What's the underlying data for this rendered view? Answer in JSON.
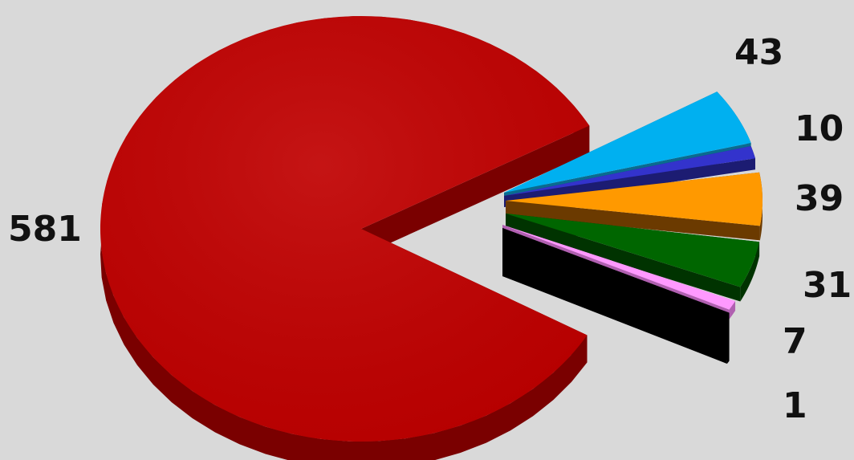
{
  "chart_data": {
    "type": "pie",
    "style": "3d-exploded",
    "title": "",
    "legend": "none",
    "slices": [
      {
        "value": 581,
        "label": "581",
        "color": "#c00000",
        "side_color": "#7a0000"
      },
      {
        "value": 43,
        "label": "43",
        "color": "#00b0f0",
        "side_color": "#0a6b8f"
      },
      {
        "value": 10,
        "label": "10",
        "color": "#3333cc",
        "side_color": "#1c1c72"
      },
      {
        "value": 39,
        "label": "39",
        "color": "#ff9900",
        "side_color": "#6b3a00"
      },
      {
        "value": 31,
        "label": "31",
        "color": "#006600",
        "side_color": "#003300"
      },
      {
        "value": 7,
        "label": "7",
        "color": "#ff99ff",
        "side_color": "#b060b0"
      },
      {
        "value": 1,
        "label": "1",
        "color": "#000000",
        "side_color": "#000000"
      }
    ]
  }
}
